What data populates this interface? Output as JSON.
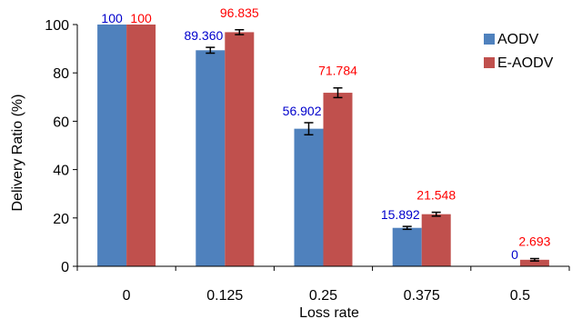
{
  "chart_data": {
    "type": "bar",
    "title": "",
    "xlabel": "Loss rate",
    "ylabel": "Delivery Ratio (%)",
    "categories": [
      "0",
      "0.125",
      "0.25",
      "0.375",
      "0.5"
    ],
    "ylim": [
      0,
      100
    ],
    "yticks": [
      0,
      20,
      40,
      60,
      80,
      100
    ],
    "grid": false,
    "legend_position": "top-right",
    "series": [
      {
        "name": "AODV",
        "color": "#4F81BD",
        "label_color": "#0000CC",
        "values": [
          100,
          89.36,
          56.902,
          15.892,
          0
        ],
        "labels": [
          "100",
          "89.360",
          "56.902",
          "15.892",
          "0"
        ],
        "errors": [
          0,
          1.2,
          2.5,
          0.6,
          0
        ]
      },
      {
        "name": "E-AODV",
        "color": "#C0504D",
        "label_color": "#FF0000",
        "values": [
          100,
          96.835,
          71.784,
          21.548,
          2.693
        ],
        "labels": [
          "100",
          "96.835",
          "71.784",
          "21.548",
          "2.693"
        ],
        "errors": [
          0,
          1.0,
          2.0,
          0.8,
          0.5
        ]
      }
    ]
  }
}
